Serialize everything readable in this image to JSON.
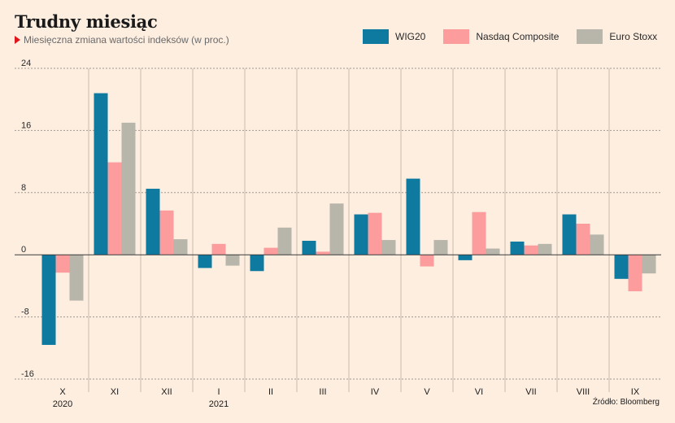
{
  "title": "Trudny miesiąc",
  "subtitle": "Miesięczna zmiana wartości indeksów (w proc.)",
  "source": "Źródło: Bloomberg",
  "chart_data": {
    "type": "bar",
    "categories": [
      "X",
      "XI",
      "XII",
      "I",
      "II",
      "III",
      "IV",
      "V",
      "VI",
      "VII",
      "VIII",
      "IX"
    ],
    "year_labels": [
      {
        "category": "X",
        "year": "2020"
      },
      {
        "category": "I",
        "year": "2021"
      }
    ],
    "series": [
      {
        "name": "WIG20",
        "color": "#0e7aa0",
        "values": [
          -11.6,
          20.8,
          8.5,
          -1.7,
          -2.1,
          1.8,
          5.2,
          9.8,
          -0.7,
          1.7,
          5.2,
          -3.1
        ]
      },
      {
        "name": "Nasdaq Composite",
        "color": "#fc9c9c",
        "values": [
          -2.3,
          11.9,
          5.7,
          1.4,
          0.9,
          0.4,
          5.4,
          -1.5,
          5.5,
          1.2,
          4.0,
          -4.7
        ]
      },
      {
        "name": "Euro Stoxx",
        "color": "#b8b5ab",
        "values": [
          -5.9,
          17.0,
          2.0,
          -1.4,
          3.5,
          6.6,
          1.9,
          1.9,
          0.8,
          1.4,
          2.6,
          -2.4
        ]
      }
    ],
    "yticks": [
      24,
      16,
      8,
      0,
      -8,
      -16
    ],
    "ylim": [
      -16,
      24
    ],
    "grid": true,
    "legend_position": "top-right"
  }
}
